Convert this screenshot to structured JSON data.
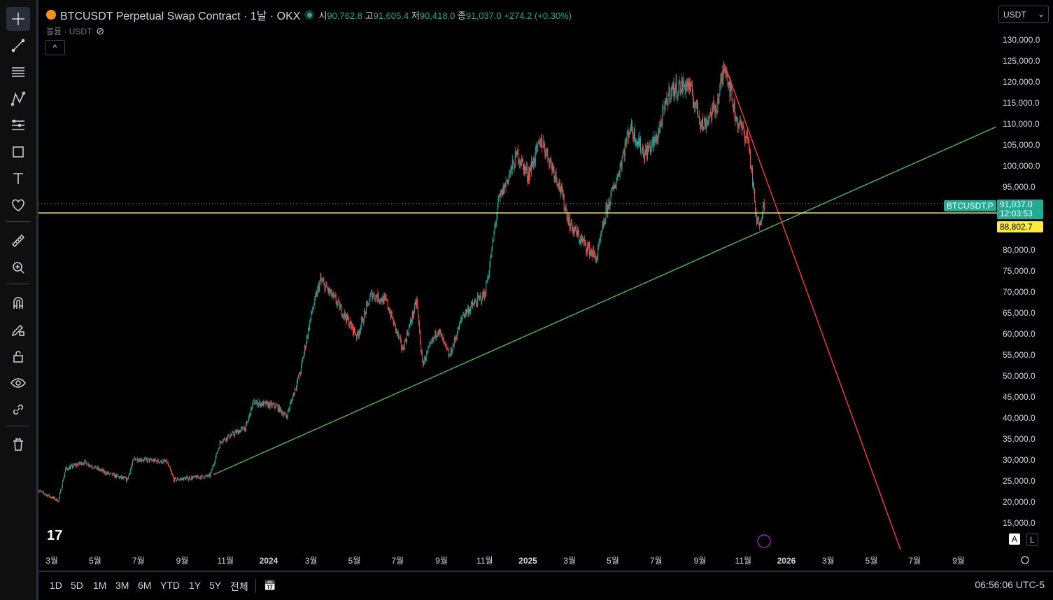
{
  "header": {
    "symbol_title": "BTCUSDT Perpetual Swap Contract · 1날 · OKX",
    "ohlc": {
      "open_label": "시",
      "open": "90,762.8",
      "high_label": "고",
      "high": "91,605.4",
      "low_label": "저",
      "low": "90,418.0",
      "close_label": "종",
      "close": "91,037.0",
      "change": "+274.2 (+0.30%)"
    },
    "volume_label": "볼륨 · USDT",
    "currency_select": "USDT"
  },
  "price_axis": {
    "ticks": [
      "130,000.0",
      "125,000.0",
      "120,000.0",
      "115,000.0",
      "110,000.0",
      "105,000.0",
      "100,000.0",
      "95,000.0",
      "80,000.0",
      "75,000.0",
      "70,000.0",
      "65,000.0",
      "60,000.0",
      "55,000.0",
      "50,000.0",
      "45,000.0",
      "40,000.0",
      "35,000.0",
      "30,000.0",
      "25,000.0",
      "20,000.0",
      "15,000.0"
    ],
    "symbol_badge": "BTCUSDT.P",
    "last_price": "91,037.0",
    "countdown": "12:03:53",
    "line_price": "88,802.7",
    "auto_label": "A",
    "log_label": "L"
  },
  "time_axis": {
    "ticks": [
      {
        "label": "3월",
        "date": "2023-03-01"
      },
      {
        "label": "5월",
        "date": "2023-05-01"
      },
      {
        "label": "7월",
        "date": "2023-07-01"
      },
      {
        "label": "9월",
        "date": "2023-09-01"
      },
      {
        "label": "11월",
        "date": "2023-11-01"
      },
      {
        "label": "2024",
        "date": "2024-01-01",
        "bold": true
      },
      {
        "label": "3월",
        "date": "2024-03-01"
      },
      {
        "label": "5월",
        "date": "2024-05-01"
      },
      {
        "label": "7월",
        "date": "2024-07-01"
      },
      {
        "label": "9월",
        "date": "2024-09-01"
      },
      {
        "label": "11월",
        "date": "2024-11-01"
      },
      {
        "label": "2025",
        "date": "2025-01-01",
        "bold": true
      },
      {
        "label": "3월",
        "date": "2025-03-01"
      },
      {
        "label": "5월",
        "date": "2025-05-01"
      },
      {
        "label": "7월",
        "date": "2025-07-01"
      },
      {
        "label": "9월",
        "date": "2025-09-01"
      },
      {
        "label": "11월",
        "date": "2025-11-01"
      },
      {
        "label": "2026",
        "date": "2026-01-01",
        "bold": true
      },
      {
        "label": "3월",
        "date": "2026-03-01"
      },
      {
        "label": "5월",
        "date": "2026-05-01"
      },
      {
        "label": "7월",
        "date": "2026-07-01"
      },
      {
        "label": "9월",
        "date": "2026-09-01"
      }
    ]
  },
  "bottom_bar": {
    "ranges": [
      "1D",
      "5D",
      "1M",
      "3M",
      "6M",
      "YTD",
      "1Y",
      "5Y",
      "전체"
    ],
    "clock": "06:56:06 UTC-5"
  },
  "colors": {
    "up": "#26a69a",
    "down": "#ef5350",
    "green_line": "#4caf50",
    "red_line": "#f23645",
    "yellow_line": "#ffeb3b",
    "badge": "#22ab94"
  },
  "left_toolbar": [
    "crosshair-icon",
    "trend-line-icon",
    "fib-icon",
    "pattern-icon",
    "projection-icon",
    "rectangle-icon",
    "text-icon",
    "heart-icon",
    "ruler-icon",
    "zoom-in-icon",
    "magnet-icon",
    "pencil-lock-icon",
    "lock-icon",
    "eye-icon",
    "link-icon",
    "trash-icon"
  ],
  "chart_data": {
    "type": "candlestick",
    "y_range": [
      15000,
      130000
    ],
    "x_range": [
      "2023-02-08",
      "2026-10-01"
    ],
    "price_path": [
      [
        "2023-02-08",
        22800
      ],
      [
        "2023-03-10",
        20300
      ],
      [
        "2023-03-20",
        27800
      ],
      [
        "2023-04-15",
        29500
      ],
      [
        "2023-05-15",
        27000
      ],
      [
        "2023-06-15",
        25300
      ],
      [
        "2023-06-25",
        30300
      ],
      [
        "2023-08-10",
        29500
      ],
      [
        "2023-08-20",
        25300
      ],
      [
        "2023-10-10",
        26200
      ],
      [
        "2023-10-25",
        34500
      ],
      [
        "2023-11-30",
        37800
      ],
      [
        "2023-12-10",
        43700
      ],
      [
        "2024-01-12",
        42800
      ],
      [
        "2024-01-26",
        40300
      ],
      [
        "2024-02-15",
        51200
      ],
      [
        "2024-03-01",
        64500
      ],
      [
        "2024-03-14",
        72800
      ],
      [
        "2024-04-05",
        67800
      ],
      [
        "2024-05-05",
        59500
      ],
      [
        "2024-05-25",
        69500
      ],
      [
        "2024-06-15",
        67800
      ],
      [
        "2024-07-08",
        56200
      ],
      [
        "2024-07-28",
        67800
      ],
      [
        "2024-08-05",
        52800
      ],
      [
        "2024-08-27",
        61200
      ],
      [
        "2024-09-12",
        54500
      ],
      [
        "2024-10-01",
        64500
      ],
      [
        "2024-11-01",
        69500
      ],
      [
        "2024-11-08",
        76200
      ],
      [
        "2024-11-20",
        91200
      ],
      [
        "2024-12-17",
        102800
      ],
      [
        "2025-01-01",
        97800
      ],
      [
        "2025-01-20",
        106200
      ],
      [
        "2025-02-13",
        96200
      ],
      [
        "2025-03-01",
        86200
      ],
      [
        "2025-03-15",
        82800
      ],
      [
        "2025-04-08",
        78000
      ],
      [
        "2025-04-22",
        89500
      ],
      [
        "2025-05-08",
        97800
      ],
      [
        "2025-05-25",
        109500
      ],
      [
        "2025-06-15",
        102800
      ],
      [
        "2025-07-01",
        106200
      ],
      [
        "2025-07-20",
        117800
      ],
      [
        "2025-08-15",
        119500
      ],
      [
        "2025-09-05",
        109500
      ],
      [
        "2025-09-25",
        114500
      ],
      [
        "2025-10-06",
        124500
      ],
      [
        "2025-10-22",
        111200
      ],
      [
        "2025-11-08",
        106200
      ],
      [
        "2025-11-20",
        86200
      ],
      [
        "2025-11-25",
        87500
      ],
      [
        "2025-12-01",
        91037
      ]
    ],
    "drawings": [
      {
        "type": "trend-line",
        "color": "green",
        "from": [
          "2023-10-15",
          26500
        ],
        "to": [
          "2026-10-24",
          109300
        ]
      },
      {
        "type": "trend-line",
        "color": "red",
        "from": [
          "2025-10-06",
          124000
        ],
        "to": [
          "2026-06-11",
          8700
        ]
      },
      {
        "type": "horizontal-line",
        "color": "yellow",
        "price": 88802.7
      }
    ]
  }
}
